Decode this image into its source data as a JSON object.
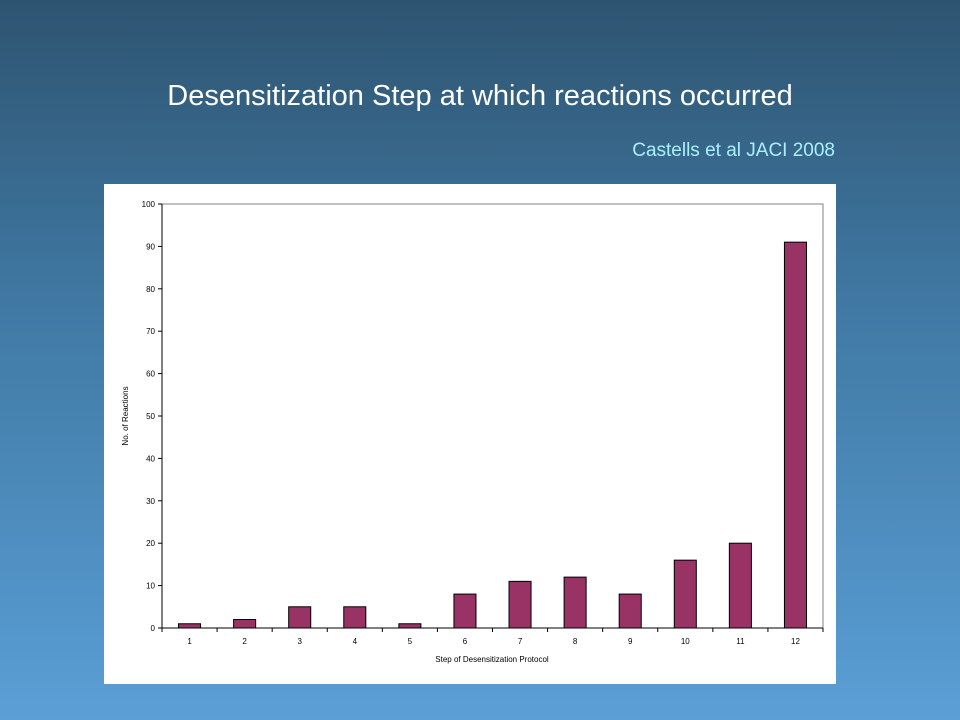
{
  "slide": {
    "title": "Desensitization Step at which reactions occurred",
    "citation": "Castells et al  JACI 2008"
  },
  "colors": {
    "bar_fill": "#993366",
    "bar_stroke": "#000000",
    "plot_background": "#ffffff"
  },
  "chart_data": {
    "type": "bar",
    "categories": [
      "1",
      "2",
      "3",
      "4",
      "5",
      "6",
      "7",
      "8",
      "9",
      "10",
      "11",
      "12"
    ],
    "values": [
      1,
      2,
      5,
      5,
      1,
      8,
      11,
      12,
      8,
      16,
      20,
      91
    ],
    "xlabel": "Step of Desensitization Protocol",
    "ylabel": "No. of Reactions",
    "ylim": [
      0,
      100
    ],
    "yticks": [
      "0",
      "10",
      "20",
      "30",
      "40",
      "50",
      "60",
      "70",
      "80",
      "90",
      "100"
    ],
    "grid": false,
    "legend": "none"
  }
}
